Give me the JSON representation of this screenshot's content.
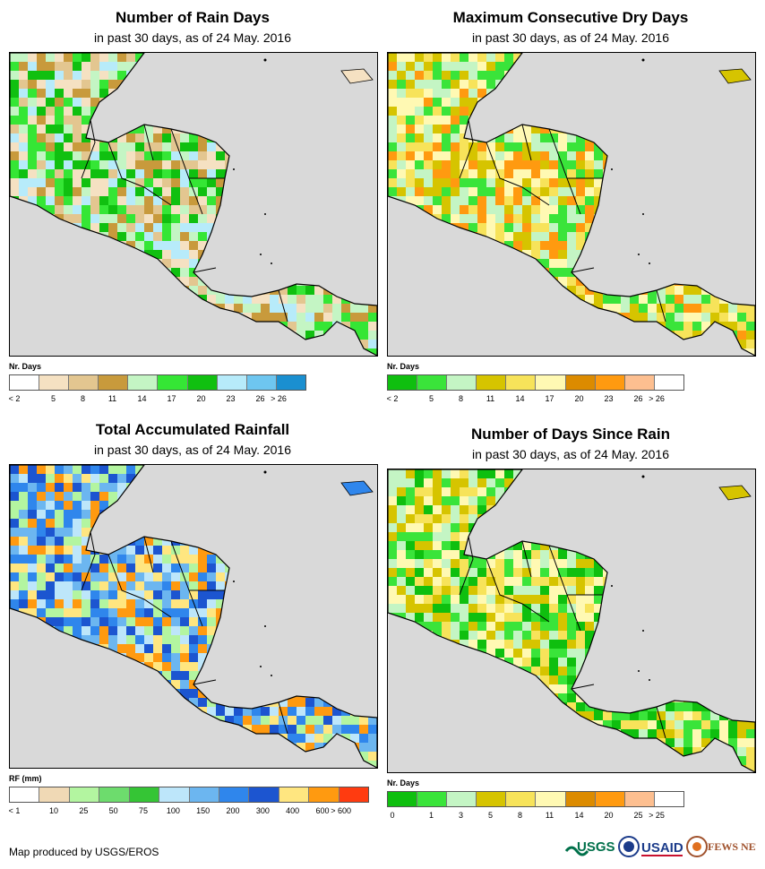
{
  "credit": "Map produced by USGS/EROS",
  "logos": {
    "usgs": "USGS",
    "usaid": "USAID",
    "fewsnet": "FEWS NET"
  },
  "panels": [
    {
      "id": "rain-days",
      "title": "Number of Rain Days",
      "subtitle": "in past 30 days, as of 24 May. 2016",
      "legend_title": "Nr. Days",
      "legend_colors": [
        "#ffffff",
        "#f5e1c2",
        "#e3c690",
        "#c89a3c",
        "#c4f5c4",
        "#35e635",
        "#10c010",
        "#b7ebfa",
        "#6ec6f0",
        "#1a8fd0"
      ],
      "legend_labels": [
        "< 2",
        "5",
        "8",
        "11",
        "14",
        "17",
        "20",
        "23",
        "26",
        "> 26"
      ],
      "map_land": "#c89a3c"
    },
    {
      "id": "max-dry-days",
      "title": "Maximum Consecutive Dry Days",
      "subtitle": "in past 30 days, as of 24 May. 2016",
      "legend_title": "Nr. Days",
      "legend_colors": [
        "#0fbf0f",
        "#3ae43a",
        "#c4f5c4",
        "#d6c400",
        "#f7e35a",
        "#fff9b3",
        "#dc8b00",
        "#ff9a10",
        "#fdbf90",
        "#ffffff"
      ],
      "legend_labels": [
        "< 2",
        "5",
        "8",
        "11",
        "14",
        "17",
        "20",
        "23",
        "26",
        "> 26"
      ],
      "map_land": "#d6c400"
    },
    {
      "id": "total-rainfall",
      "title": "Total Accumulated Rainfall",
      "subtitle": "in past 30 days, as of 24 May. 2016",
      "legend_title": "RF (mm)",
      "legend_colors": [
        "#ffffff",
        "#f0d9b5",
        "#b3f5a0",
        "#6ddc6d",
        "#35c535",
        "#bde6fa",
        "#6cb6f0",
        "#2f86ec",
        "#1c55d0",
        "#ffe680",
        "#ff9a10",
        "#ff3b10"
      ],
      "legend_labels": [
        "< 1",
        "10",
        "25",
        "50",
        "75",
        "100",
        "150",
        "200",
        "300",
        "400",
        "600",
        "> 600"
      ],
      "map_land": "#2f86ec"
    },
    {
      "id": "days-since-rain",
      "title": "Number of Days Since Rain",
      "subtitle": "in past 30 days, as of 24 May. 2016",
      "legend_title": "Nr. Days",
      "legend_colors": [
        "#0fbf0f",
        "#3ae43a",
        "#c4f5c4",
        "#d6c400",
        "#f7e35a",
        "#fff9b3",
        "#dc8b00",
        "#ff9a10",
        "#fdbf90",
        "#ffffff"
      ],
      "legend_labels": [
        "0",
        "1",
        "3",
        "5",
        "8",
        "11",
        "14",
        "20",
        "25",
        "> 25"
      ],
      "map_land": "#d6c400"
    }
  ]
}
